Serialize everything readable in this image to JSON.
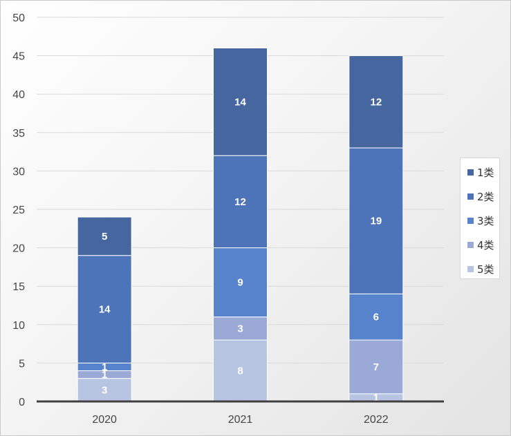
{
  "chart_data": {
    "type": "bar",
    "stacked": true,
    "categories": [
      "2020",
      "2021",
      "2022"
    ],
    "series": [
      {
        "name": "5类",
        "values": [
          3,
          8,
          1
        ],
        "color": "#b8c5e2"
      },
      {
        "name": "4类",
        "values": [
          1,
          3,
          7
        ],
        "color": "#9aa9d6"
      },
      {
        "name": "3类",
        "values": [
          1,
          9,
          6
        ],
        "color": "#5782cc"
      },
      {
        "name": "2类",
        "values": [
          14,
          12,
          19
        ],
        "color": "#4d73b9"
      },
      {
        "name": "1类",
        "values": [
          5,
          14,
          12
        ],
        "color": "#46669f"
      }
    ],
    "legend_order": [
      "1类",
      "2类",
      "3类",
      "4类",
      "5类"
    ],
    "ylim": [
      0,
      50
    ],
    "y_ticks": [
      0,
      5,
      10,
      15,
      20,
      25,
      30,
      35,
      40,
      45,
      50
    ],
    "grid": true,
    "legend": "right",
    "title": "",
    "xlabel": "",
    "ylabel": ""
  }
}
